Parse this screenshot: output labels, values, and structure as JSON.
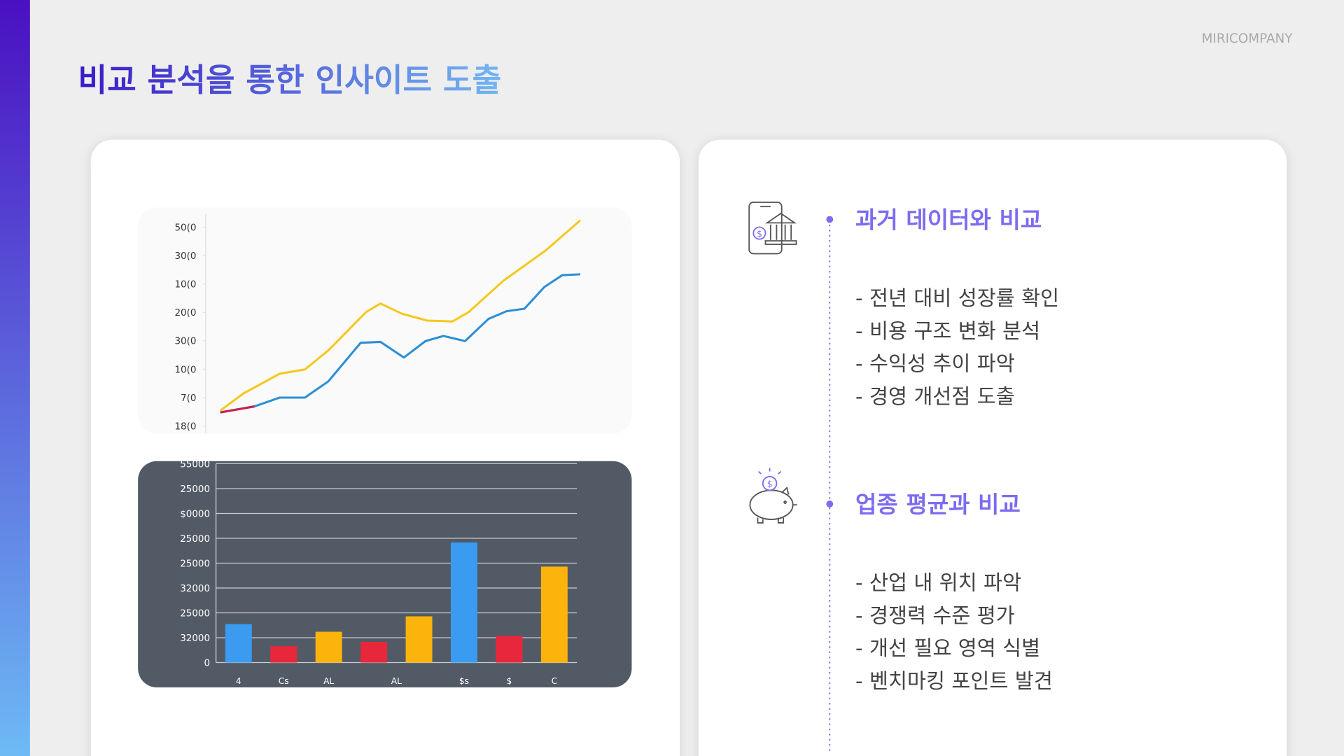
{
  "brand": "MIRICOMPANY",
  "title": "비교 분석을 통한 인사이트 도출",
  "line_chart": {
    "type": "line",
    "xlim": [
      0,
      20
    ],
    "ylim": [
      0,
      7
    ],
    "yticks": [
      {
        "value": 7,
        "label": "50(0"
      },
      {
        "value": 6,
        "label": "30(0"
      },
      {
        "value": 5,
        "label": "10(0"
      },
      {
        "value": 4,
        "label": "20(0"
      },
      {
        "value": 3,
        "label": "30(0"
      },
      {
        "value": 2,
        "label": "10(0"
      },
      {
        "value": 1,
        "label": "7(0"
      },
      {
        "value": 0,
        "label": "18(0"
      }
    ],
    "series": [
      {
        "color": "#f5c820",
        "x": [
          0,
          1.3,
          3.3,
          4.7,
          6,
          8.1,
          8.9,
          10.1,
          11.5,
          12.9,
          13.8,
          15.7,
          18.1,
          20
        ],
        "values": [
          0.54,
          1.15,
          1.84,
          1.99,
          2.66,
          4.01,
          4.31,
          3.95,
          3.71,
          3.68,
          4.01,
          5.1,
          6.19,
          7.24
        ]
      },
      {
        "color": "#2c8fd6",
        "x": [
          0,
          1.9,
          3.3,
          4.7,
          6,
          7.8,
          8.9,
          10.2,
          11.4,
          12.4,
          13.6,
          14.9,
          15.9,
          16.9,
          18,
          19,
          20
        ],
        "values": [
          0.48,
          0.69,
          1.0,
          1.0,
          1.57,
          2.93,
          2.96,
          2.41,
          2.99,
          3.17,
          2.99,
          3.77,
          4.04,
          4.13,
          4.89,
          5.31,
          5.34
        ]
      },
      {
        "color": "#c8224a",
        "x": [
          0,
          1.1,
          1.9
        ],
        "values": [
          0.48,
          0.6,
          0.69
        ]
      }
    ]
  },
  "bar_chart": {
    "type": "bar",
    "ylim": [
      0,
      8
    ],
    "yticks": [
      {
        "value": 0,
        "label": "0"
      },
      {
        "value": 1,
        "label": "32000"
      },
      {
        "value": 2,
        "label": "25000"
      },
      {
        "value": 3,
        "label": "32000"
      },
      {
        "value": 4,
        "label": "25000"
      },
      {
        "value": 5,
        "label": "25000"
      },
      {
        "value": 6,
        "label": "$0000"
      },
      {
        "value": 7,
        "label": "25000"
      },
      {
        "value": 8,
        "label": "55000"
      }
    ],
    "categories": [
      "4",
      "Cs",
      "AL",
      "AL",
      null,
      "$s",
      "$",
      "C"
    ],
    "values": [
      1.55,
      0.66,
      1.24,
      0.83,
      1.86,
      4.83,
      1.07,
      3.86
    ],
    "colors": [
      "#3a9bf0",
      "#e8283a",
      "#fbb40c",
      "#e8283a",
      "#fbb40c",
      "#3a9bf0",
      "#e8283a",
      "#fbb40c"
    ]
  },
  "sections": [
    {
      "heading": "과거 데이터와 비교",
      "items": [
        "- 전년 대비 성장률 확인",
        "- 비용 구조 변화 분석",
        "- 수익성 추이 파악",
        "- 경영 개선점 도출"
      ]
    },
    {
      "heading": "업종 평균과 비교",
      "items": [
        "- 산업 내 위치 파악",
        "- 경쟁력 수준 평가",
        "- 개선 필요 영역 식별",
        "- 벤치마킹 포인트 발견"
      ]
    }
  ]
}
